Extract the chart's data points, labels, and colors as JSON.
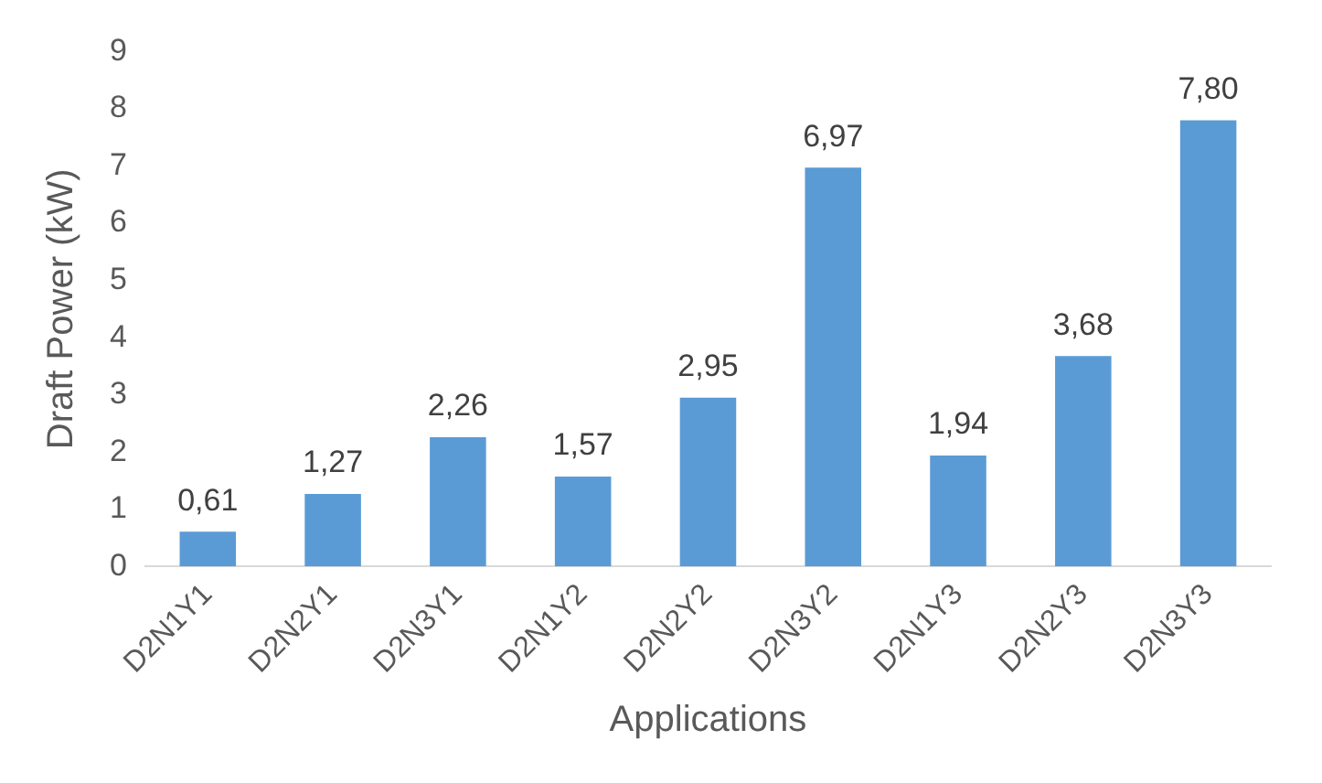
{
  "chart_data": {
    "type": "bar",
    "xlabel": "Applications",
    "ylabel": "Draft Power (kW)",
    "categories": [
      "D2N1Y1",
      "D2N2Y1",
      "D2N3Y1",
      "D2N1Y2",
      "D2N2Y2",
      "D2N3Y2",
      "D2N1Y3",
      "D2N2Y3",
      "D2N3Y3"
    ],
    "values": [
      0.61,
      1.27,
      2.26,
      1.57,
      2.95,
      6.97,
      1.94,
      3.68,
      7.8
    ],
    "value_labels": [
      "0,61",
      "1,27",
      "2,26",
      "1,57",
      "2,95",
      "6,97",
      "1,94",
      "3,68",
      "7,80"
    ],
    "color": "#5b9bd5",
    "ylim": [
      0,
      9
    ],
    "yticks": [
      0,
      1,
      2,
      3,
      4,
      5,
      6,
      7,
      8,
      9
    ],
    "grid": false,
    "legend": false
  }
}
